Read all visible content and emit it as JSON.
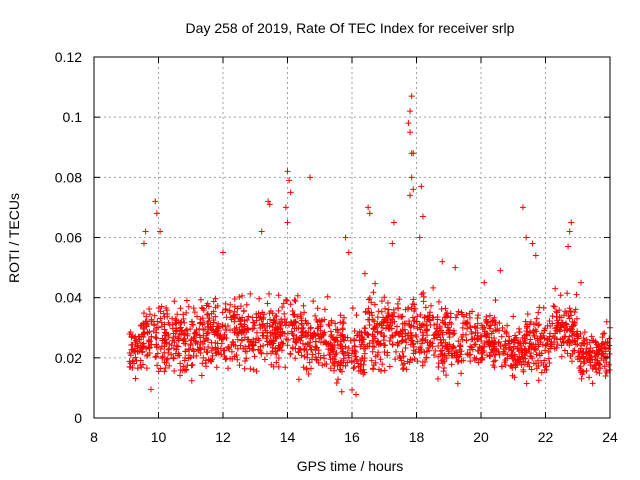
{
  "chart_data": {
    "type": "scatter",
    "title": "Day 258 of 2019, Rate Of TEC Index for receiver srlp",
    "xlabel": "GPS time / hours",
    "ylabel": "ROTI / TECUs",
    "xlim": [
      8,
      24
    ],
    "ylim": [
      0,
      0.12
    ],
    "x_ticks": [
      "8",
      "10",
      "12",
      "14",
      "16",
      "18",
      "20",
      "22",
      "24"
    ],
    "y_ticks": [
      "0",
      "0.02",
      "0.04",
      "0.06",
      "0.08",
      "0.1",
      "0.12"
    ],
    "grid": true,
    "marker": "+",
    "color": "#ff0000",
    "series": [
      {
        "name": "ROTI",
        "points": [
          [
            9.9,
            0.072
          ],
          [
            9.95,
            0.068
          ],
          [
            9.6,
            0.062
          ],
          [
            9.55,
            0.058
          ],
          [
            10.05,
            0.062
          ],
          [
            12.0,
            0.055
          ],
          [
            13.4,
            0.072
          ],
          [
            13.45,
            0.071
          ],
          [
            13.2,
            0.062
          ],
          [
            14.0,
            0.082
          ],
          [
            14.05,
            0.079
          ],
          [
            14.1,
            0.075
          ],
          [
            13.95,
            0.07
          ],
          [
            14.0,
            0.065
          ],
          [
            14.7,
            0.08
          ],
          [
            16.5,
            0.07
          ],
          [
            16.55,
            0.068
          ],
          [
            17.3,
            0.065
          ],
          [
            17.25,
            0.058
          ],
          [
            17.85,
            0.107
          ],
          [
            17.8,
            0.102
          ],
          [
            17.75,
            0.098
          ],
          [
            17.8,
            0.095
          ],
          [
            17.85,
            0.088
          ],
          [
            17.9,
            0.088
          ],
          [
            17.85,
            0.08
          ],
          [
            17.9,
            0.076
          ],
          [
            17.8,
            0.074
          ],
          [
            18.15,
            0.077
          ],
          [
            18.2,
            0.067
          ],
          [
            18.1,
            0.06
          ],
          [
            21.3,
            0.07
          ],
          [
            21.4,
            0.06
          ],
          [
            21.6,
            0.058
          ],
          [
            21.7,
            0.054
          ],
          [
            22.8,
            0.065
          ],
          [
            22.75,
            0.062
          ],
          [
            22.7,
            0.057
          ],
          [
            15.8,
            0.06
          ],
          [
            15.9,
            0.055
          ],
          [
            16.4,
            0.048
          ],
          [
            18.8,
            0.052
          ],
          [
            19.2,
            0.05
          ],
          [
            20.1,
            0.045
          ],
          [
            20.6,
            0.049
          ],
          [
            22.3,
            0.043
          ],
          [
            23.1,
            0.045
          ],
          [
            23.9,
            0.032
          ],
          [
            24.0,
            0.03
          ]
        ]
      }
    ],
    "dense_bands": [
      {
        "x": [
          9.1,
          9.5
        ],
        "y": [
          0.01,
          0.035
        ]
      },
      {
        "x": [
          9.5,
          10.3
        ],
        "y": [
          0.008,
          0.045
        ]
      },
      {
        "x": [
          10.3,
          11.5
        ],
        "y": [
          0.01,
          0.043
        ]
      },
      {
        "x": [
          11.5,
          13.0
        ],
        "y": [
          0.012,
          0.046
        ]
      },
      {
        "x": [
          13.0,
          14.3
        ],
        "y": [
          0.012,
          0.044
        ]
      },
      {
        "x": [
          14.3,
          15.4
        ],
        "y": [
          0.01,
          0.042
        ]
      },
      {
        "x": [
          15.4,
          16.4
        ],
        "y": [
          0.006,
          0.04
        ]
      },
      {
        "x": [
          16.4,
          17.5
        ],
        "y": [
          0.012,
          0.046
        ]
      },
      {
        "x": [
          17.5,
          18.6
        ],
        "y": [
          0.01,
          0.046
        ]
      },
      {
        "x": [
          18.6,
          19.6
        ],
        "y": [
          0.01,
          0.043
        ]
      },
      {
        "x": [
          19.6,
          20.6
        ],
        "y": [
          0.01,
          0.04
        ]
      },
      {
        "x": [
          20.6,
          21.4
        ],
        "y": [
          0.01,
          0.036
        ]
      },
      {
        "x": [
          21.4,
          22.2
        ],
        "y": [
          0.01,
          0.04
        ]
      },
      {
        "x": [
          22.2,
          23.0
        ],
        "y": [
          0.015,
          0.044
        ]
      },
      {
        "x": [
          23.0,
          24.0
        ],
        "y": [
          0.01,
          0.032
        ]
      }
    ]
  }
}
